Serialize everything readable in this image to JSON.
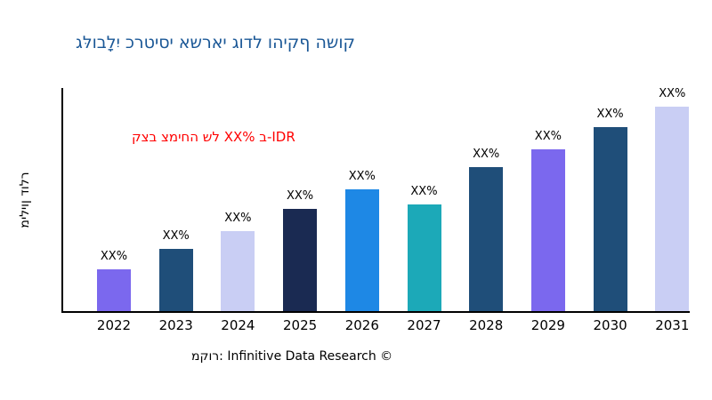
{
  "source": "מקור: Infinitive Data Research ©",
  "chart_data": {
    "type": "bar",
    "title": "גלּובלָיִ כרטיסי אשראי גודל והיקף השוק",
    "title_color": "#1A5796",
    "ylabel": "מיליון דולר",
    "annotation": "קצב צמיחה של XX% ב-IDR",
    "annotation_color": "#FF0000",
    "categories": [
      "2022",
      "2023",
      "2024",
      "2025",
      "2026",
      "2027",
      "2028",
      "2029",
      "2030",
      "2031"
    ],
    "values": [
      19,
      28,
      36,
      46,
      55,
      48,
      65,
      73,
      83,
      92
    ],
    "bar_labels": [
      "XX%",
      "XX%",
      "XX%",
      "XX%",
      "XX%",
      "XX%",
      "XX%",
      "XX%",
      "XX%",
      "XX%"
    ],
    "bar_colors": [
      "#7B68EE",
      "#1F4E79",
      "#C9CEF4",
      "#1A2A52",
      "#1E88E5",
      "#1CA9B8",
      "#1F4E79",
      "#7B68EE",
      "#1F4E79",
      "#C9CEF4"
    ],
    "ylim": [
      0,
      100
    ],
    "grid": false,
    "legend": false,
    "axis_color": "#000000"
  }
}
